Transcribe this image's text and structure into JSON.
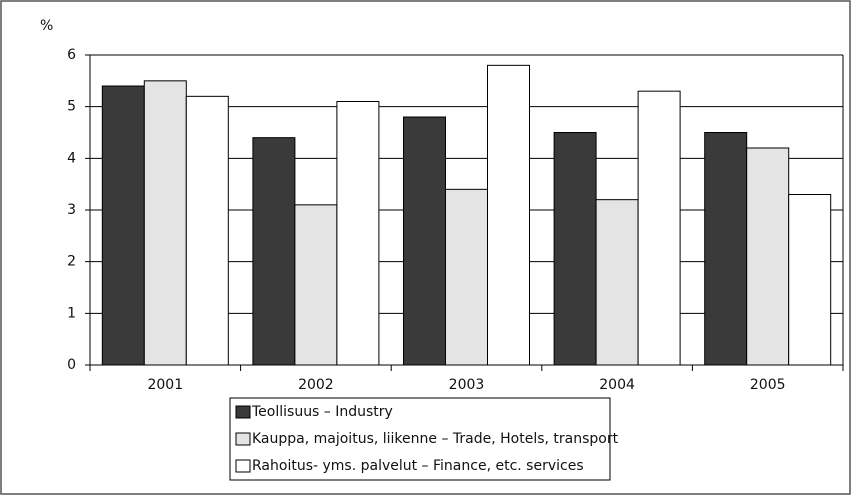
{
  "chart_data": {
    "type": "bar",
    "y_label": "%",
    "categories": [
      "2001",
      "2002",
      "2003",
      "2004",
      "2005"
    ],
    "series": [
      {
        "name": "Teollisuus – Industry",
        "color": "#3a3a3a",
        "values": [
          5.4,
          4.4,
          4.8,
          4.5,
          4.5
        ]
      },
      {
        "name": "Kauppa, majoitus, liikenne – Trade, Hotels, transport",
        "color": "#e4e4e4",
        "values": [
          5.5,
          3.1,
          3.4,
          3.2,
          4.2
        ]
      },
      {
        "name": "Rahoitus- yms. palvelut – Finance, etc. services",
        "color": "#ffffff",
        "values": [
          5.2,
          5.1,
          5.8,
          5.3,
          3.3
        ]
      }
    ],
    "ylim": [
      0,
      6
    ],
    "yticks": [
      0,
      1,
      2,
      3,
      4,
      5,
      6
    ],
    "grid": true
  }
}
